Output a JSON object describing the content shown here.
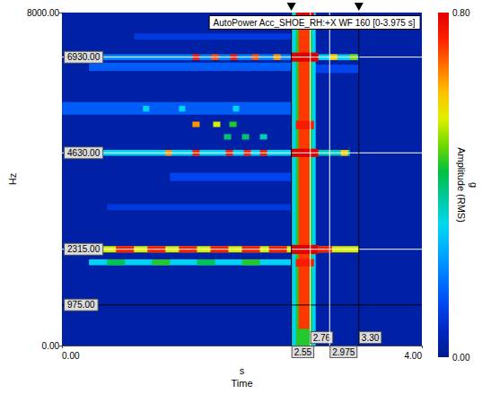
{
  "chart_data": {
    "type": "spectrogram",
    "title": "AutoPower Acc_SHOE_RH:+X WF 160 [0-3.975 s]",
    "xlabel": "Time",
    "x_unit": "s",
    "ylabel": "Hz",
    "xlim": [
      0,
      4
    ],
    "xticks": [
      {
        "value": 0,
        "label": "0.00"
      },
      {
        "value": 4,
        "label": "4.00"
      }
    ],
    "ylim": [
      0,
      8000
    ],
    "yticks": [
      {
        "value": 0,
        "label": "0.00"
      },
      {
        "value": 8000,
        "label": "8000.00"
      }
    ],
    "grid": false,
    "cells": [
      [
        0,
        4,
        0,
        8000,
        0.03
      ],
      [
        0.0,
        2.55,
        5550,
        5850,
        0.15
      ],
      [
        0.3,
        2.55,
        6600,
        6800,
        0.15
      ],
      [
        1.2,
        2.55,
        3950,
        4150,
        0.12
      ],
      [
        0.5,
        2.55,
        3250,
        3400,
        0.1
      ],
      [
        0.8,
        2.55,
        7350,
        7500,
        0.1
      ],
      [
        2.8,
        3.3,
        6550,
        6750,
        0.12
      ],
      [
        0.3,
        2.55,
        1930,
        2070,
        0.3
      ],
      [
        0.5,
        0.7,
        1930,
        2070,
        0.42
      ],
      [
        1.0,
        1.2,
        1930,
        2070,
        0.45
      ],
      [
        1.5,
        1.7,
        1930,
        2070,
        0.42
      ],
      [
        2.0,
        2.2,
        1930,
        2070,
        0.45
      ],
      [
        0.25,
        2.55,
        2240,
        2390,
        0.55
      ],
      [
        0.3,
        0.45,
        2240,
        2390,
        0.75
      ],
      [
        0.6,
        0.8,
        2240,
        2390,
        0.75
      ],
      [
        0.95,
        1.15,
        2240,
        2390,
        0.75
      ],
      [
        1.3,
        1.5,
        2240,
        2390,
        0.75
      ],
      [
        1.65,
        1.85,
        2240,
        2390,
        0.75
      ],
      [
        2.0,
        2.2,
        2240,
        2390,
        0.75
      ],
      [
        2.3,
        2.5,
        2240,
        2390,
        0.75
      ],
      [
        2.8,
        3.3,
        2240,
        2390,
        0.55
      ],
      [
        2.85,
        3.0,
        2240,
        2390,
        0.75
      ],
      [
        0.3,
        2.55,
        4560,
        4700,
        0.3
      ],
      [
        1.15,
        1.22,
        4560,
        4700,
        0.65
      ],
      [
        1.45,
        1.53,
        4560,
        4700,
        0.75
      ],
      [
        1.82,
        1.9,
        4560,
        4700,
        0.75
      ],
      [
        2.02,
        2.1,
        4560,
        4700,
        0.75
      ],
      [
        2.2,
        2.28,
        4560,
        4700,
        0.75
      ],
      [
        2.8,
        3.2,
        4560,
        4700,
        0.35
      ],
      [
        3.1,
        3.18,
        4560,
        4700,
        0.6
      ],
      [
        1.8,
        1.88,
        4950,
        5080,
        0.4
      ],
      [
        2.0,
        2.08,
        4950,
        5080,
        0.4
      ],
      [
        2.2,
        2.28,
        4950,
        5080,
        0.35
      ],
      [
        1.45,
        1.53,
        5250,
        5380,
        0.65
      ],
      [
        1.68,
        1.76,
        5250,
        5380,
        0.55
      ],
      [
        1.86,
        1.94,
        5250,
        5380,
        0.45
      ],
      [
        0.9,
        0.97,
        5620,
        5760,
        0.3
      ],
      [
        1.3,
        1.37,
        5620,
        5760,
        0.3
      ],
      [
        1.9,
        1.97,
        5620,
        5760,
        0.3
      ],
      [
        0.4,
        2.55,
        6860,
        7000,
        0.2
      ],
      [
        1.45,
        1.53,
        6860,
        7000,
        0.75
      ],
      [
        1.66,
        1.74,
        6860,
        7000,
        0.7
      ],
      [
        1.87,
        1.95,
        6860,
        7000,
        0.75
      ],
      [
        2.11,
        2.19,
        6860,
        7000,
        0.7
      ],
      [
        2.35,
        2.43,
        6860,
        7000,
        0.65
      ],
      [
        2.8,
        3.3,
        6860,
        7000,
        0.3
      ],
      [
        2.98,
        3.06,
        6860,
        7000,
        0.6
      ],
      [
        3.2,
        3.28,
        6860,
        7000,
        0.5
      ],
      [
        2.55,
        2.82,
        0,
        8000,
        0.3
      ],
      [
        2.6,
        2.78,
        0,
        8000,
        0.45
      ],
      [
        2.63,
        2.75,
        400,
        8000,
        0.72
      ],
      [
        2.55,
        2.85,
        2200,
        2420,
        0.8
      ],
      [
        2.55,
        2.85,
        4530,
        4730,
        0.8
      ],
      [
        2.55,
        2.85,
        6820,
        7040,
        0.8
      ],
      [
        2.6,
        2.8,
        7700,
        8000,
        0.8
      ],
      [
        2.6,
        2.8,
        1900,
        2080,
        0.75
      ],
      [
        2.6,
        2.8,
        5200,
        5400,
        0.75
      ]
    ],
    "colorbar": {
      "label": "Amplitude (RMS)",
      "unit": "g",
      "range": [
        0,
        0.8
      ],
      "ticks": [
        {
          "value": 0,
          "label": "0.00"
        },
        {
          "value": 0.8,
          "label": "0.80"
        }
      ]
    },
    "annotations": [
      {
        "axis": "y",
        "value": 6930,
        "label": "6930.00",
        "color": "#ffffff"
      },
      {
        "axis": "y",
        "value": 4630,
        "label": "4630.00",
        "color": "#ffffff"
      },
      {
        "axis": "y",
        "value": 2315,
        "label": "2315.00",
        "color": "#ffffff"
      },
      {
        "axis": "y",
        "value": 975,
        "label": "975.00",
        "color": "#000000"
      },
      {
        "axis": "x",
        "value": 2.55,
        "label": "2.55",
        "color": "#000000",
        "marker": "triangle"
      },
      {
        "axis": "x",
        "value": 2.76,
        "label": "2.76",
        "color": "#ffffff"
      },
      {
        "axis": "x",
        "value": 2.975,
        "label": "2.975",
        "color": "#ffffff"
      },
      {
        "axis": "x",
        "value": 3.3,
        "label": "3.30",
        "color": "#000000",
        "marker": "triangle"
      }
    ]
  }
}
